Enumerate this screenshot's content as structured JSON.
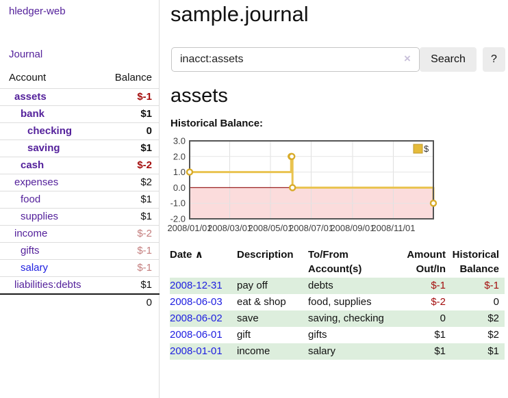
{
  "app": {
    "title": "hledger-web",
    "nav_journal": "Journal"
  },
  "colors": {
    "accent_purple": "#54219b",
    "link_blue": "#1d1de0",
    "negative_strong": "#a40e0e",
    "negative_faint": "#c47e7e",
    "row_green": "#ddeedd",
    "chart_line": "#e9c34f",
    "chart_marker_stroke": "#d8ab29",
    "chart_negative_fill": "#fbdcdc",
    "chart_zero_line": "#991f1f"
  },
  "sidebar": {
    "accounts_header": {
      "account": "Account",
      "balance": "Balance"
    },
    "rows": [
      {
        "name": "assets",
        "depth": 1,
        "bold": true,
        "balance": "$-1",
        "balance_style": "neg-strong",
        "link_style": "purple"
      },
      {
        "name": "bank",
        "depth": 2,
        "bold": true,
        "balance": "$1",
        "balance_style": "pos-strong",
        "link_style": "purple"
      },
      {
        "name": "checking",
        "depth": 3,
        "bold": true,
        "balance": "0",
        "balance_style": "pos-strong",
        "link_style": "purple"
      },
      {
        "name": "saving",
        "depth": 3,
        "bold": true,
        "balance": "$1",
        "balance_style": "pos-strong",
        "link_style": "purple"
      },
      {
        "name": "cash",
        "depth": 2,
        "bold": true,
        "balance": "$-2",
        "balance_style": "neg-strong",
        "link_style": "purple"
      },
      {
        "name": "expenses",
        "depth": 1,
        "bold": false,
        "balance": "$2",
        "balance_style": "pos",
        "link_style": "purple"
      },
      {
        "name": "food",
        "depth": 2,
        "bold": false,
        "balance": "$1",
        "balance_style": "pos",
        "link_style": "purple"
      },
      {
        "name": "supplies",
        "depth": 2,
        "bold": false,
        "balance": "$1",
        "balance_style": "pos",
        "link_style": "purple"
      },
      {
        "name": "income",
        "depth": 1,
        "bold": false,
        "balance": "$-2",
        "balance_style": "neg-faint",
        "link_style": "purple"
      },
      {
        "name": "gifts",
        "depth": 2,
        "bold": false,
        "balance": "$-1",
        "balance_style": "neg-faint",
        "link_style": "purple"
      },
      {
        "name": "salary",
        "depth": 2,
        "bold": false,
        "balance": "$-1",
        "balance_style": "neg-faint",
        "link_style": "blue"
      },
      {
        "name": "liabilities:debts",
        "depth": 1,
        "bold": false,
        "balance": "$1",
        "balance_style": "pos",
        "link_style": "purple"
      }
    ],
    "total": "0"
  },
  "header": {
    "title": "sample.journal"
  },
  "search": {
    "value": "inacct:assets",
    "clear_icon": "×",
    "button_label": "Search",
    "help_label": "?"
  },
  "account_page": {
    "heading": "assets",
    "chart_label": "Historical Balance:"
  },
  "chart_data": {
    "type": "line",
    "title": "Historical Balance",
    "step": true,
    "series": [
      {
        "name": "$",
        "points": [
          {
            "date": "2008-01-01",
            "value": 1
          },
          {
            "date": "2008-06-01",
            "value": 2
          },
          {
            "date": "2008-06-02",
            "value": 2
          },
          {
            "date": "2008-06-03",
            "value": 0
          },
          {
            "date": "2008-12-31",
            "value": -1
          }
        ]
      }
    ],
    "x_ticks": [
      {
        "date": "2008-03-01",
        "label": "2008/03/01"
      },
      {
        "date": "2008-05-01",
        "label": "2008/05/01"
      },
      {
        "date": "2008-07-01",
        "label": "2008/07/01"
      },
      {
        "date": "2008-09-01",
        "label": "2008/09/01"
      },
      {
        "date": "2008-11-01",
        "label": "2008/11/01"
      }
    ],
    "x_first_tick": {
      "date": "2008-01-01",
      "label": "2008/01/01"
    },
    "y_ticks": [
      3.0,
      2.0,
      1.0,
      0.0,
      -1.0,
      -2.0
    ],
    "ylim": [
      -2,
      3
    ],
    "x_range": [
      "2008-01-01",
      "2008-12-31"
    ],
    "legend": {
      "label": "$",
      "position": "top-right"
    },
    "grid": true
  },
  "register": {
    "columns": {
      "date": "Date",
      "sort_indicator": "∧",
      "description": "Description",
      "accounts": "To/From Account(s)",
      "amount": "Amount Out/In",
      "balance": "Historical Balance"
    },
    "rows": [
      {
        "date": "2008-12-31",
        "description": "pay off",
        "accounts": "debts",
        "amount": "$-1",
        "amount_neg": true,
        "balance": "$-1",
        "balance_neg": true
      },
      {
        "date": "2008-06-03",
        "description": "eat & shop",
        "accounts": "food, supplies",
        "amount": "$-2",
        "amount_neg": true,
        "balance": "0",
        "balance_neg": false
      },
      {
        "date": "2008-06-02",
        "description": "save",
        "accounts": "saving, checking",
        "amount": "0",
        "amount_neg": false,
        "balance": "$2",
        "balance_neg": false
      },
      {
        "date": "2008-06-01",
        "description": "gift",
        "accounts": "gifts",
        "amount": "$1",
        "amount_neg": false,
        "balance": "$2",
        "balance_neg": false
      },
      {
        "date": "2008-01-01",
        "description": "income",
        "accounts": "salary",
        "amount": "$1",
        "amount_neg": false,
        "balance": "$1",
        "balance_neg": false
      }
    ]
  }
}
